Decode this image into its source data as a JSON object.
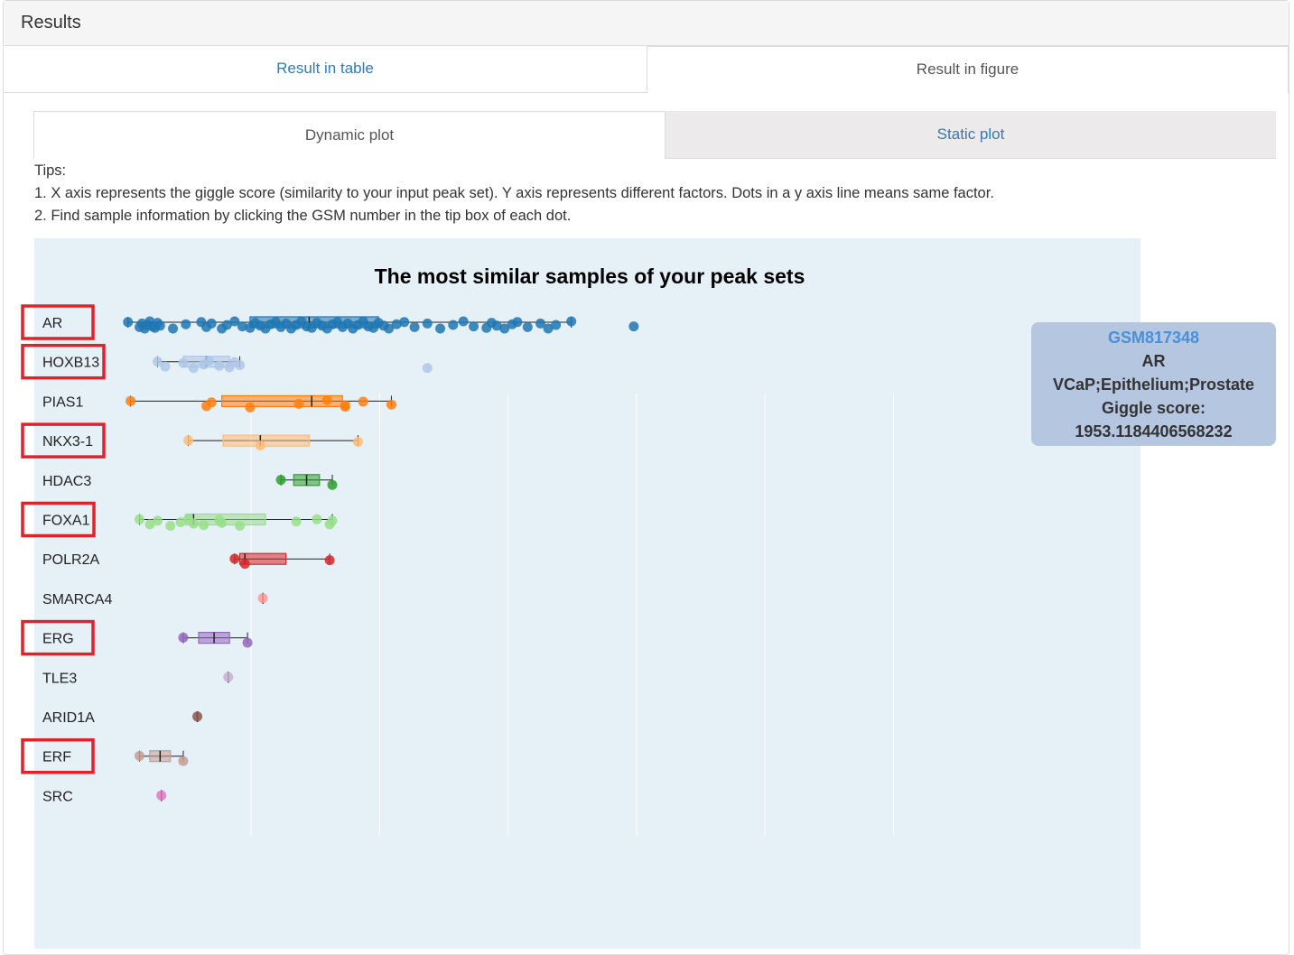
{
  "panel": {
    "title": "Results"
  },
  "main_tabs": [
    {
      "label": "Result in table",
      "active": false
    },
    {
      "label": "Result in figure",
      "active": true
    }
  ],
  "sub_tabs": [
    {
      "label": "Dynamic plot",
      "active": true
    },
    {
      "label": "Static plot",
      "active": false
    }
  ],
  "tips": {
    "heading": "Tips:",
    "line1": "1. X axis represents the giggle score (similarity to your input peak set). Y axis represents different factors. Dots in a y axis line means same factor.",
    "line2": "2. Find sample information by clicking the GSM number in the tip box of each dot."
  },
  "tooltip": {
    "gsm": "GSM817348",
    "factor": "AR",
    "sample": "VCaP;Epithelium;Prostate",
    "score_label": "Giggle score:",
    "score_value": "1953.1184406568232"
  },
  "highlight_color": "#e0222a",
  "chart_data": {
    "type": "box",
    "title": "The most similar samples of your peak sets",
    "xlabel": "",
    "ylabel": "",
    "xlim": [
      0,
      2100
    ],
    "grid": "vertical",
    "highlighted": [
      "AR",
      "HOXB13",
      "NKX3-1",
      "FOXA1",
      "ERG",
      "ERF"
    ],
    "series": [
      {
        "name": "AR",
        "color": "#1f77b4",
        "min": -15,
        "q1": 460,
        "median": 690,
        "q3": 960,
        "max": 1710,
        "points": [
          -15,
          30,
          40,
          50,
          60,
          70,
          80,
          90,
          100,
          110,
          160,
          210,
          270,
          290,
          310,
          350,
          370,
          400,
          430,
          460,
          480,
          500,
          520,
          540,
          560,
          580,
          600,
          620,
          640,
          660,
          680,
          700,
          720,
          740,
          760,
          780,
          800,
          820,
          840,
          860,
          880,
          900,
          920,
          940,
          960,
          980,
          1000,
          1030,
          1060,
          1100,
          1150,
          1200,
          1250,
          1290,
          1330,
          1380,
          1400,
          1420,
          1450,
          1480,
          1500,
          1540,
          1590,
          1620,
          1650,
          1710,
          1953
        ]
      },
      {
        "name": "HOXB13",
        "color": "#aec7e8",
        "min": 100,
        "q1": 200,
        "median": 290,
        "q3": 380,
        "max": 420,
        "points": [
          100,
          130,
          200,
          240,
          280,
          300,
          340,
          380,
          400,
          420,
          1150
        ]
      },
      {
        "name": "PIAS1",
        "color": "#ff7f0e",
        "min": -5,
        "q1": 350,
        "median": 700,
        "q3": 820,
        "max": 1010,
        "points": [
          -5,
          290,
          310,
          460,
          650,
          760,
          830,
          830,
          900,
          1010
        ]
      },
      {
        "name": "NKX3-1",
        "color": "#ffbb78",
        "min": 220,
        "q1": 355,
        "median": 500,
        "q3": 690,
        "max": 880,
        "points": [
          220,
          500,
          880
        ]
      },
      {
        "name": "HDAC3",
        "color": "#2ca02c",
        "min": 580,
        "q1": 630,
        "median": 680,
        "q3": 730,
        "max": 780,
        "points": [
          580,
          780
        ]
      },
      {
        "name": "FOXA1",
        "color": "#98df8a",
        "min": 30,
        "q1": 210,
        "median": 240,
        "q3": 520,
        "max": 780,
        "points": [
          30,
          70,
          100,
          150,
          190,
          220,
          240,
          280,
          340,
          350,
          420,
          640,
          720,
          770,
          780
        ]
      },
      {
        "name": "POLR2A",
        "color": "#d62728",
        "min": 400,
        "q1": 420,
        "median": 440,
        "q3": 600,
        "max": 770,
        "points": [
          400,
          440,
          770
        ]
      },
      {
        "name": "SMARCA4",
        "color": "#ff9896",
        "min": 510,
        "q1": 510,
        "median": 510,
        "q3": 510,
        "max": 510,
        "points": [
          510
        ]
      },
      {
        "name": "ERG",
        "color": "#9467bd",
        "min": 200,
        "q1": 260,
        "median": 320,
        "q3": 380,
        "max": 450,
        "points": [
          200,
          450
        ]
      },
      {
        "name": "TLE3",
        "color": "#c5b0d5",
        "min": 375,
        "q1": 375,
        "median": 375,
        "q3": 375,
        "max": 375,
        "points": [
          375
        ]
      },
      {
        "name": "ARID1A",
        "color": "#8c564b",
        "min": 255,
        "q1": 255,
        "median": 255,
        "q3": 255,
        "max": 255,
        "points": [
          255
        ]
      },
      {
        "name": "ERF",
        "color": "#c49c94",
        "min": 30,
        "q1": 70,
        "median": 110,
        "q3": 150,
        "max": 200,
        "points": [
          30,
          200
        ]
      },
      {
        "name": "SRC",
        "color": "#e377c2",
        "min": 115,
        "q1": 115,
        "median": 115,
        "q3": 115,
        "max": 115,
        "points": [
          115
        ]
      }
    ]
  }
}
